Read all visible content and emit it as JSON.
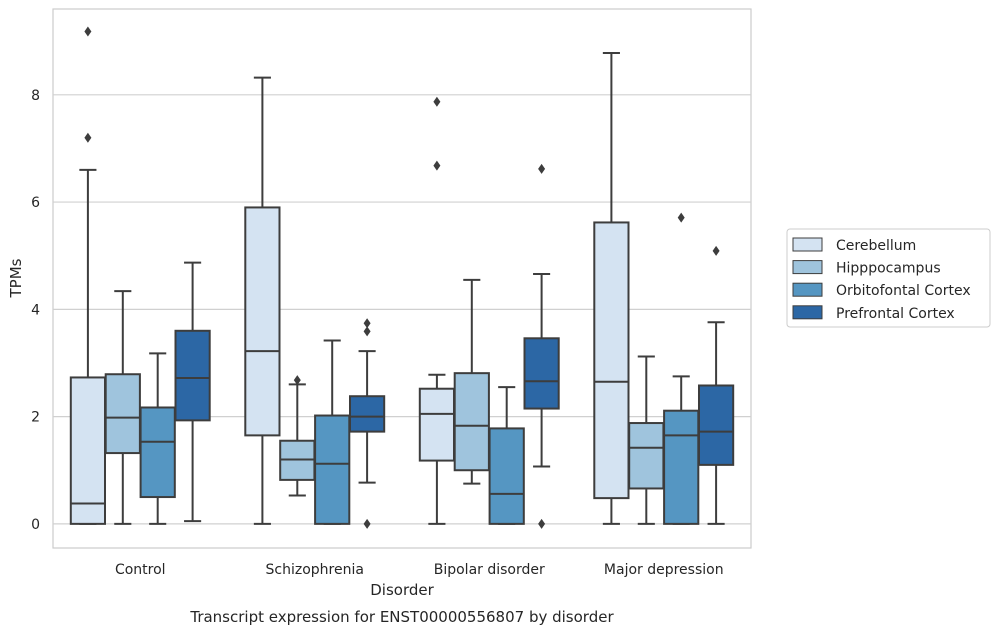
{
  "chart_data": {
    "type": "boxplot",
    "title": "Transcript expression for ENST00000556807 by disorder",
    "xlabel": "Disorder",
    "ylabel": "TPMs",
    "ylim": [
      -0.45,
      9.6
    ],
    "yticks": [
      0,
      2,
      4,
      6,
      8
    ],
    "grid": "horizontal",
    "legend_position": "right",
    "categories": [
      "Control",
      "Schizophrenia",
      "Bipolar disorder",
      "Major depression"
    ],
    "series": [
      {
        "name": "Cerebellum",
        "color": "#d4e3f2",
        "boxes": [
          {
            "whislo": 0,
            "q1": 0,
            "med": 0.38,
            "q3": 2.73,
            "whishi": 6.6,
            "fliers": [
              7.2,
              9.18
            ]
          },
          {
            "whislo": 0,
            "q1": 1.65,
            "med": 3.22,
            "q3": 5.9,
            "whishi": 8.32,
            "fliers": []
          },
          {
            "whislo": 0,
            "q1": 1.18,
            "med": 2.05,
            "q3": 2.52,
            "whishi": 2.78,
            "fliers": [
              6.68,
              7.87
            ]
          },
          {
            "whislo": 0,
            "q1": 0.48,
            "med": 2.65,
            "q3": 5.62,
            "whishi": 8.78,
            "fliers": []
          }
        ]
      },
      {
        "name": "Hipppocampus",
        "color": "#9fc4dd",
        "boxes": [
          {
            "whislo": 0,
            "q1": 1.32,
            "med": 1.98,
            "q3": 2.79,
            "whishi": 4.34,
            "fliers": []
          },
          {
            "whislo": 0.53,
            "q1": 0.82,
            "med": 1.2,
            "q3": 1.55,
            "whishi": 2.6,
            "fliers": [
              2.68
            ]
          },
          {
            "whislo": 0.75,
            "q1": 1.0,
            "med": 1.83,
            "q3": 2.81,
            "whishi": 4.55,
            "fliers": []
          },
          {
            "whislo": 0,
            "q1": 0.66,
            "med": 1.42,
            "q3": 1.88,
            "whishi": 3.12,
            "fliers": []
          }
        ]
      },
      {
        "name": "Orbitofontal Cortex",
        "color": "#5596c2",
        "boxes": [
          {
            "whislo": 0,
            "q1": 0.5,
            "med": 1.53,
            "q3": 2.17,
            "whishi": 3.18,
            "fliers": []
          },
          {
            "whislo": 0,
            "q1": 0,
            "med": 1.12,
            "q3": 2.02,
            "whishi": 3.42,
            "fliers": []
          },
          {
            "whislo": 0,
            "q1": 0,
            "med": 0.56,
            "q3": 1.78,
            "whishi": 2.55,
            "fliers": []
          },
          {
            "whislo": 0,
            "q1": 0,
            "med": 1.65,
            "q3": 2.11,
            "whishi": 2.75,
            "fliers": [
              5.71
            ]
          }
        ]
      },
      {
        "name": "Prefrontal Cortex",
        "color": "#2c67a5",
        "boxes": [
          {
            "whislo": 0.05,
            "q1": 1.93,
            "med": 2.72,
            "q3": 3.6,
            "whishi": 4.87,
            "fliers": []
          },
          {
            "whislo": 0.77,
            "q1": 1.72,
            "med": 2.0,
            "q3": 2.38,
            "whishi": 3.22,
            "fliers": [
              3.59,
              3.74,
              0
            ]
          },
          {
            "whislo": 1.07,
            "q1": 2.15,
            "med": 2.66,
            "q3": 3.46,
            "whishi": 4.66,
            "fliers": [
              6.62,
              0
            ]
          },
          {
            "whislo": 0,
            "q1": 1.1,
            "med": 1.72,
            "q3": 2.58,
            "whishi": 3.76,
            "fliers": [
              5.09
            ]
          }
        ]
      }
    ]
  }
}
